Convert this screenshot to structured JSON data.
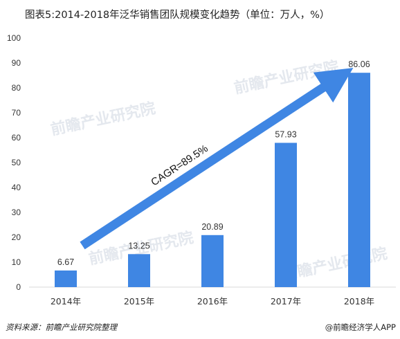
{
  "title": "图表5:2014-2018年泛华销售团队规模变化趋势（单位：万人，%）",
  "source": "资料来源：前瞻产业研究院整理",
  "credit": "@前瞻经济学人APP",
  "watermark": "前瞻产业研究院",
  "chart_data": {
    "type": "bar",
    "categories": [
      "2014年",
      "2015年",
      "2016年",
      "2017年",
      "2018年"
    ],
    "values": [
      6.67,
      13.25,
      20.89,
      57.93,
      86.06
    ],
    "value_labels": [
      "6.67",
      "13.25",
      "20.89",
      "57.93",
      "86.06"
    ],
    "y_ticks": [
      "0",
      "10",
      "20",
      "30",
      "40",
      "50",
      "60",
      "70",
      "80",
      "90",
      "100"
    ],
    "ylim": [
      0,
      100
    ],
    "xlabel": "",
    "ylabel": "",
    "grid": false,
    "bar_color": "#3f86e3",
    "annotation": {
      "text": "CAGR=89.5%",
      "color": "#3f86e3"
    }
  }
}
